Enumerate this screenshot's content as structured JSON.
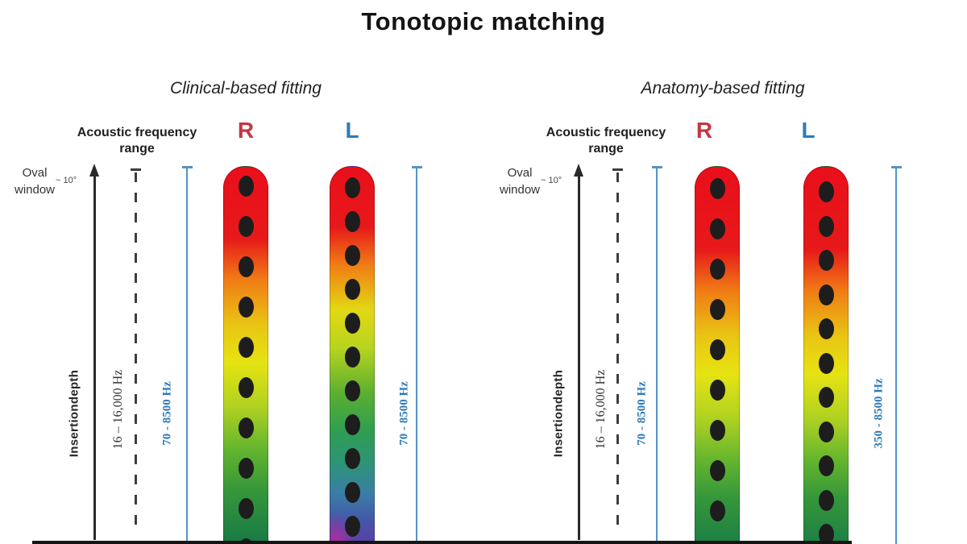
{
  "title": "Tonotopic matching",
  "colors": {
    "right_ear": "#c23743",
    "left_ear": "#2d7cba",
    "range_line": "#5494c6",
    "range_text": "#2d7ab8",
    "axis_ink": "#2a2a2a",
    "electrode_dot": "#1d1d1d",
    "title_ink": "#141414",
    "background": "#ffffff",
    "bottom_bar": "#151515"
  },
  "gradients": {
    "standard": [
      [
        0,
        "#e90f1b"
      ],
      [
        0.19,
        "#e7191a"
      ],
      [
        0.3,
        "#f07c15"
      ],
      [
        0.42,
        "#e9c514"
      ],
      [
        0.52,
        "#e6e312"
      ],
      [
        0.64,
        "#afd122"
      ],
      [
        0.75,
        "#64b52e"
      ],
      [
        0.86,
        "#35973a"
      ],
      [
        1,
        "#187a45"
      ]
    ],
    "deep": [
      [
        0,
        "#e90f1b"
      ],
      [
        0.16,
        "#e7191a"
      ],
      [
        0.26,
        "#f07c15"
      ],
      [
        0.38,
        "#e2d813"
      ],
      [
        0.48,
        "#b8d41f"
      ],
      [
        0.6,
        "#5cb030"
      ],
      [
        0.7,
        "#2f9e50"
      ],
      [
        0.79,
        "#2d9378"
      ],
      [
        0.87,
        "#3a7da6"
      ],
      [
        0.94,
        "#4456aa"
      ],
      [
        1,
        "#5b3fa4"
      ]
    ],
    "matched": [
      [
        0,
        "#e90f1b"
      ],
      [
        0.22,
        "#e7191a"
      ],
      [
        0.33,
        "#f07c15"
      ],
      [
        0.45,
        "#e9c514"
      ],
      [
        0.55,
        "#e6e312"
      ],
      [
        0.67,
        "#afd122"
      ],
      [
        0.78,
        "#64b52e"
      ],
      [
        0.88,
        "#35973a"
      ],
      [
        1,
        "#1d8045"
      ]
    ]
  },
  "panels": [
    {
      "subtitle": "Clinical-based fitting",
      "freq_header": {
        "line1": "Acoustic frequency",
        "line2": "range"
      },
      "oval_window": {
        "line1": "Oval",
        "angle": "~ 10°",
        "line2": "window"
      },
      "insertion_axis": "Insertiondepth",
      "acoustic_range": "16 – 16,000 Hz",
      "ears": {
        "right": {
          "label": "R",
          "range": "70 - 8500 Hz",
          "electrodes": 10
        },
        "left": {
          "label": "L",
          "range": "70 - 8500 Hz",
          "electrodes": 11
        }
      }
    },
    {
      "subtitle": "Anatomy-based fitting",
      "freq_header": {
        "line1": "Acoustic frequency",
        "line2": "range"
      },
      "oval_window": {
        "line1": "Oval",
        "angle": "~ 10°",
        "line2": "window"
      },
      "insertion_axis": "Insertiondepth",
      "acoustic_range": "16 – 16,000 Hz",
      "ears": {
        "right": {
          "label": "R",
          "range": "70 - 8500 Hz",
          "electrodes": 10
        },
        "left": {
          "label": "L",
          "range": "350 - 8500 Hz",
          "electrodes": 11
        }
      }
    }
  ]
}
